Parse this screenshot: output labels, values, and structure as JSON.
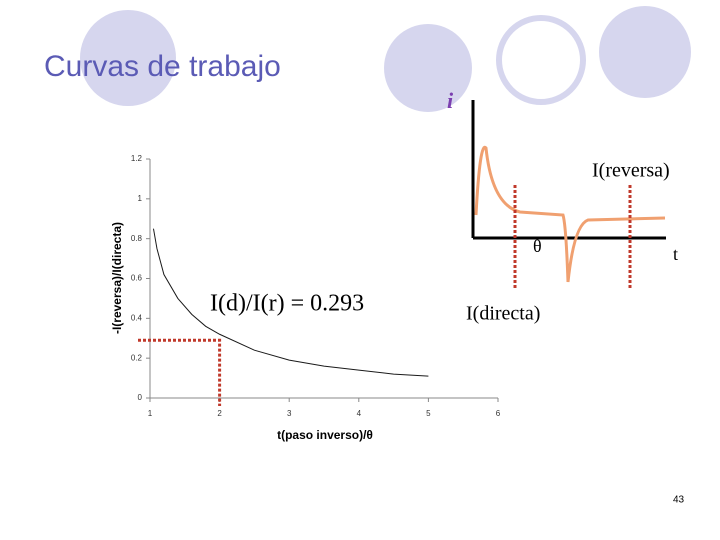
{
  "title": "Curvas de trabajo",
  "page_number": "43",
  "chart_data": {
    "type": "line",
    "x_label": "t(paso inverso)/θ",
    "y_label": "-I(reversa)/I(directa)",
    "annotation": "I(d)/I(r) = 0.293",
    "xlim": [
      1,
      6
    ],
    "ylim": [
      0,
      1.2
    ],
    "xticks": [
      1,
      2,
      3,
      4,
      5,
      6
    ],
    "yticks": [
      0,
      0.2,
      0.4,
      0.6,
      0.8,
      1,
      1.2
    ],
    "series": [
      {
        "color": "#1a1a1a",
        "x": [
          1.05,
          1.1,
          1.2,
          1.4,
          1.6,
          1.8,
          2,
          2.5,
          3,
          3.5,
          4,
          4.5,
          5
        ],
        "values": [
          0.85,
          0.75,
          0.62,
          0.5,
          0.42,
          0.36,
          0.32,
          0.24,
          0.19,
          0.16,
          0.14,
          0.12,
          0.11
        ]
      }
    ],
    "reference_point": {
      "x": 2,
      "y": 0.29,
      "color": "#c0392b"
    }
  },
  "diagram": {
    "current_label": "i",
    "reversa_label": "I(reversa)",
    "directa_label": "I(directa)",
    "theta_label": "θ",
    "time_label": "t"
  }
}
